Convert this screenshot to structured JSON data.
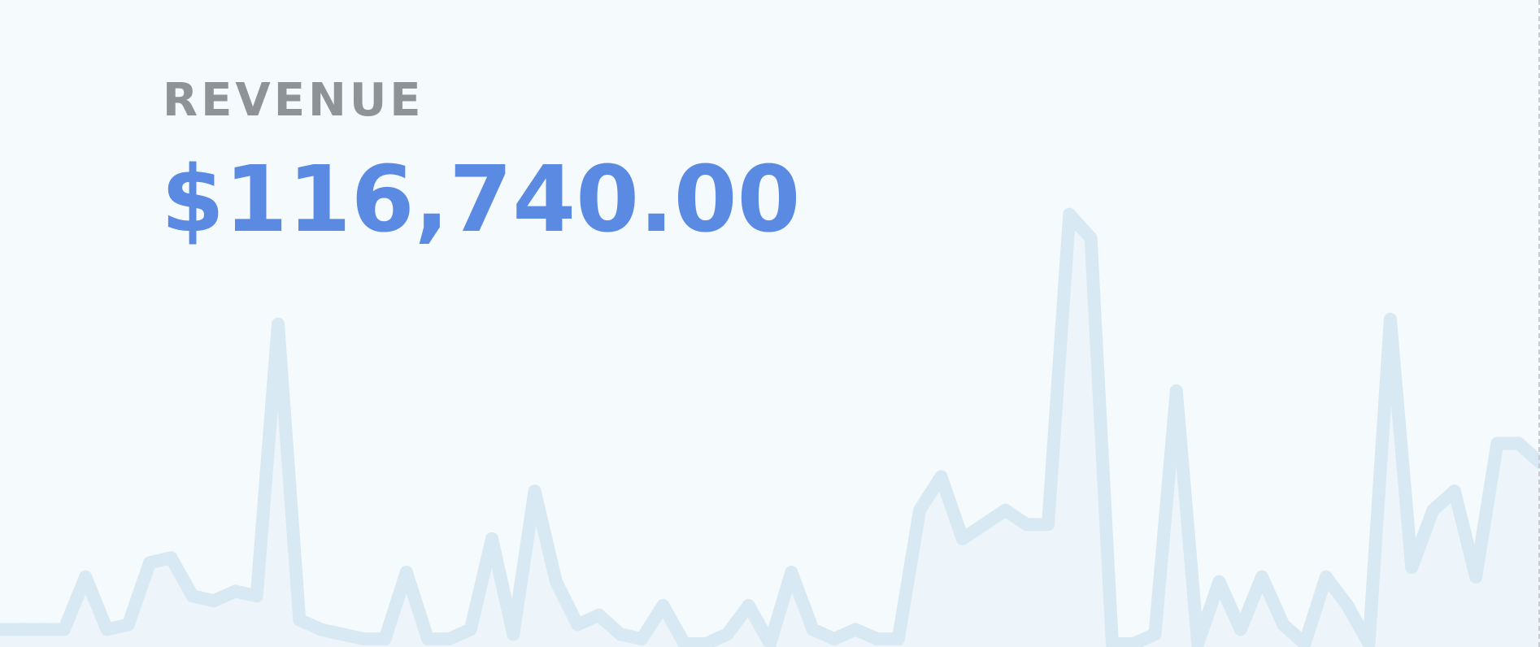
{
  "metric": {
    "label": "REVENUE",
    "value": "$116,740.00"
  },
  "colors": {
    "background": "#f5fafd",
    "label": "#8f9296",
    "value": "#5b8ae3",
    "line": "#d9e9f3",
    "area": "#edf5fb"
  },
  "chart_data": {
    "type": "area",
    "grid": false,
    "legend": "none",
    "ylim": [
      0,
      100
    ],
    "values": [
      3,
      3,
      3,
      3,
      14,
      3,
      4,
      17,
      18,
      10,
      9,
      11,
      10,
      67,
      5,
      3,
      2,
      1,
      1,
      15,
      1,
      1,
      3,
      22,
      2,
      32,
      13,
      4,
      6,
      2,
      1,
      8,
      0,
      0,
      2,
      8,
      0,
      15,
      3,
      1,
      3,
      1,
      1,
      28,
      35,
      22,
      25,
      28,
      25,
      25,
      90,
      85,
      0,
      0,
      2,
      53,
      0,
      13,
      3,
      14,
      4,
      0,
      14,
      8,
      0,
      68,
      16,
      28,
      32,
      14,
      42,
      42,
      38
    ]
  }
}
